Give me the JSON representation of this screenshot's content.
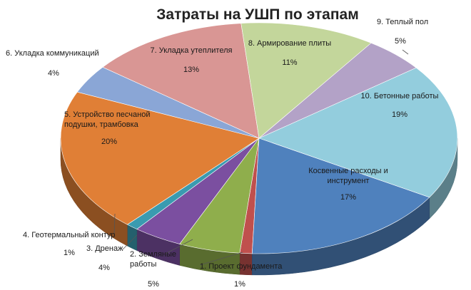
{
  "chart_data": {
    "type": "pie",
    "title": "Затраты на УШП по этапам",
    "three_d": true,
    "slices": [
      {
        "label": "1. Проект фундамента",
        "value": 1,
        "pct_label": "1%",
        "color": "#c0504d"
      },
      {
        "label": "2. Земляные работы",
        "label_lines": [
          "2. Земляные",
          "работы"
        ],
        "value": 5,
        "pct_label": "5%",
        "color": "#8fae4c"
      },
      {
        "label": "3. Дренаж",
        "value": 4,
        "pct_label": "4%",
        "color": "#7b4fa0"
      },
      {
        "label": "4. Геотермальный контур",
        "value": 1,
        "pct_label": "1%",
        "color": "#3a9bb0"
      },
      {
        "label": "5. Устройство песчаной подушки, трамбовка",
        "label_lines": [
          "5. Устройство песчаной",
          "подушки, трамбовка"
        ],
        "value": 20,
        "pct_label": "20%",
        "color": "#e07f36"
      },
      {
        "label": "6. Укладка коммуникаций",
        "value": 4,
        "pct_label": "4%",
        "color": "#8aa6d6"
      },
      {
        "label": "7. Укладка утеплителя",
        "value": 13,
        "pct_label": "13%",
        "color": "#d99694"
      },
      {
        "label": "8. Армирование плиты",
        "value": 11,
        "pct_label": "11%",
        "color": "#c3d69b"
      },
      {
        "label": "9. Теплый пол",
        "value": 5,
        "pct_label": "5%",
        "color": "#b3a2c7"
      },
      {
        "label": "10. Бетонные работы",
        "value": 19,
        "pct_label": "19%",
        "color": "#93cddd"
      },
      {
        "label": "Косвенные расходы и инструмент",
        "label_lines": [
          "Косвенные расходы и",
          "инструмент"
        ],
        "value": 17,
        "pct_label": "17%",
        "color": "#4f81bd"
      }
    ]
  }
}
